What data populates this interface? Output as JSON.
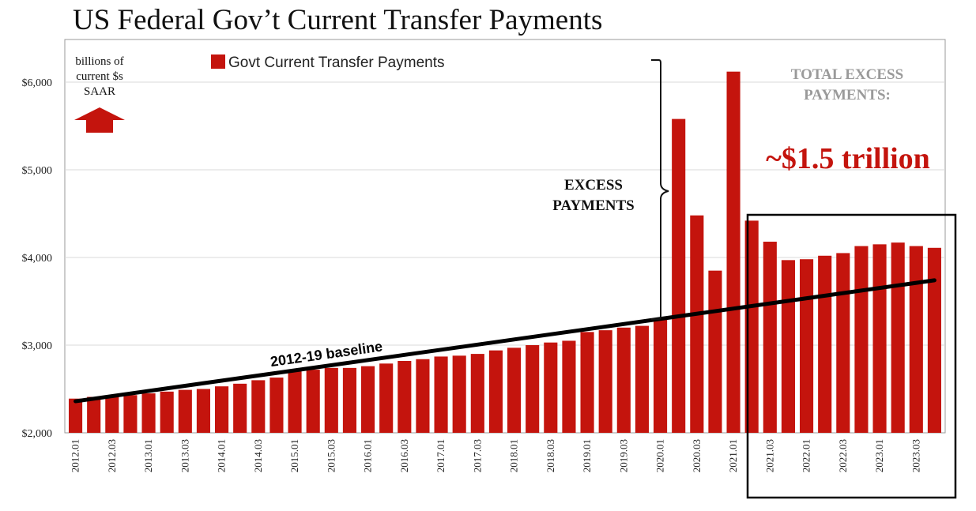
{
  "title": "US Federal Gov’t Current Transfer Payments",
  "chart_data": {
    "type": "bar",
    "title": "US Federal Gov’t Current Transfer Payments",
    "xlabel": "",
    "ylabel": "",
    "units": [
      "billions of",
      "current $s",
      "SAAR"
    ],
    "ylim": [
      2000,
      6400
    ],
    "yticks": [
      2000,
      3000,
      4000,
      5000,
      6000
    ],
    "ytick_labels": [
      "$2,000",
      "$3,000",
      "$4,000",
      "$5,000",
      "$6,000"
    ],
    "grid": true,
    "legend_position": "top-left",
    "categories": [
      "2012.01",
      "2012.02",
      "2012.03",
      "2012.04",
      "2013.01",
      "2013.02",
      "2013.03",
      "2013.04",
      "2014.01",
      "2014.02",
      "2014.03",
      "2014.04",
      "2015.01",
      "2015.02",
      "2015.03",
      "2015.04",
      "2016.01",
      "2016.02",
      "2016.03",
      "2016.04",
      "2017.01",
      "2017.02",
      "2017.03",
      "2017.04",
      "2018.01",
      "2018.02",
      "2018.03",
      "2018.04",
      "2019.01",
      "2019.02",
      "2019.03",
      "2019.04",
      "2020.01",
      "2020.02",
      "2020.03",
      "2020.04",
      "2021.01",
      "2021.02",
      "2021.03",
      "2021.04",
      "2022.01",
      "2022.02",
      "2022.03",
      "2022.04",
      "2023.01",
      "2023.02",
      "2023.03",
      "2023.04"
    ],
    "tick_labels": [
      "2012.01",
      "2012.03",
      "2013.01",
      "2013.03",
      "2014.01",
      "2014.03",
      "2015.01",
      "2015.03",
      "2016.01",
      "2016.03",
      "2017.01",
      "2017.03",
      "2018.01",
      "2018.03",
      "2019.01",
      "2019.03",
      "2020.01",
      "2020.03",
      "2021.01",
      "2021.03",
      "2022.01",
      "2022.03",
      "2023.01",
      "2023.03"
    ],
    "series": [
      {
        "name": "Govt Current Transfer Payments",
        "color": "#c4140d",
        "values": [
          2390,
          2410,
          2420,
          2430,
          2450,
          2470,
          2490,
          2500,
          2530,
          2560,
          2600,
          2630,
          2700,
          2720,
          2740,
          2740,
          2760,
          2790,
          2820,
          2840,
          2870,
          2880,
          2900,
          2940,
          2970,
          3000,
          3030,
          3050,
          3150,
          3170,
          3200,
          3220,
          3290,
          5580,
          4480,
          3850,
          6120,
          4420,
          4180,
          3970,
          3980,
          4020,
          4050,
          4130,
          4150,
          4170,
          4130,
          4110
        ]
      }
    ],
    "baseline": {
      "label": "2012-19 baseline",
      "from": {
        "x": "2012.01",
        "y": 2360
      },
      "to": {
        "x": "2023.04",
        "y": 3740
      }
    },
    "annotations": {
      "excess": [
        "EXCESS",
        "PAYMENTS"
      ],
      "total": [
        "TOTAL EXCESS",
        "PAYMENTS:"
      ],
      "total_value": "~$1.5 trillion"
    }
  }
}
